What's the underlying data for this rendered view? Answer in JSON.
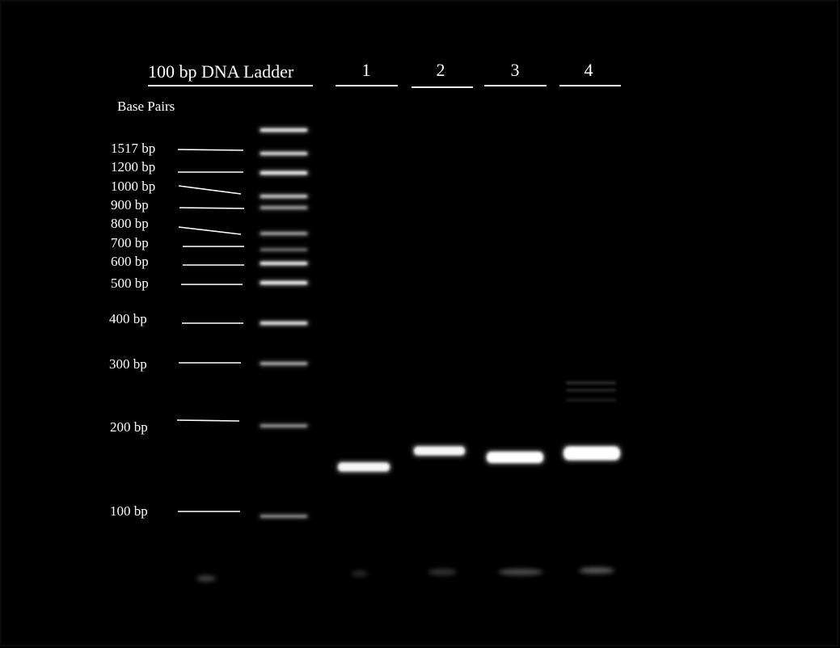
{
  "gel": {
    "title": "100 bp DNA Ladder",
    "lanes": [
      {
        "label": "1",
        "band_bp": 155
      },
      {
        "label": "2",
        "band_bp": 175
      },
      {
        "label": "3",
        "band_bp": 165
      },
      {
        "label": "4",
        "band_bp": 170
      }
    ],
    "axis_title": "Base Pairs",
    "ladder_markers": [
      {
        "label": "1517 bp",
        "bp": 1517
      },
      {
        "label": "1200 bp",
        "bp": 1200
      },
      {
        "label": "1000 bp",
        "bp": 1000
      },
      {
        "label": "900 bp",
        "bp": 900
      },
      {
        "label": "800 bp",
        "bp": 800
      },
      {
        "label": "700 bp",
        "bp": 700
      },
      {
        "label": "600 bp",
        "bp": 600
      },
      {
        "label": "500 bp",
        "bp": 500
      },
      {
        "label": "400 bp",
        "bp": 400
      },
      {
        "label": "300 bp",
        "bp": 300
      },
      {
        "label": "200 bp",
        "bp": 200
      },
      {
        "label": "100 bp",
        "bp": 100
      }
    ],
    "colors": {
      "background": "#000000",
      "band": "#ffffff",
      "text": "#ffffff"
    }
  }
}
